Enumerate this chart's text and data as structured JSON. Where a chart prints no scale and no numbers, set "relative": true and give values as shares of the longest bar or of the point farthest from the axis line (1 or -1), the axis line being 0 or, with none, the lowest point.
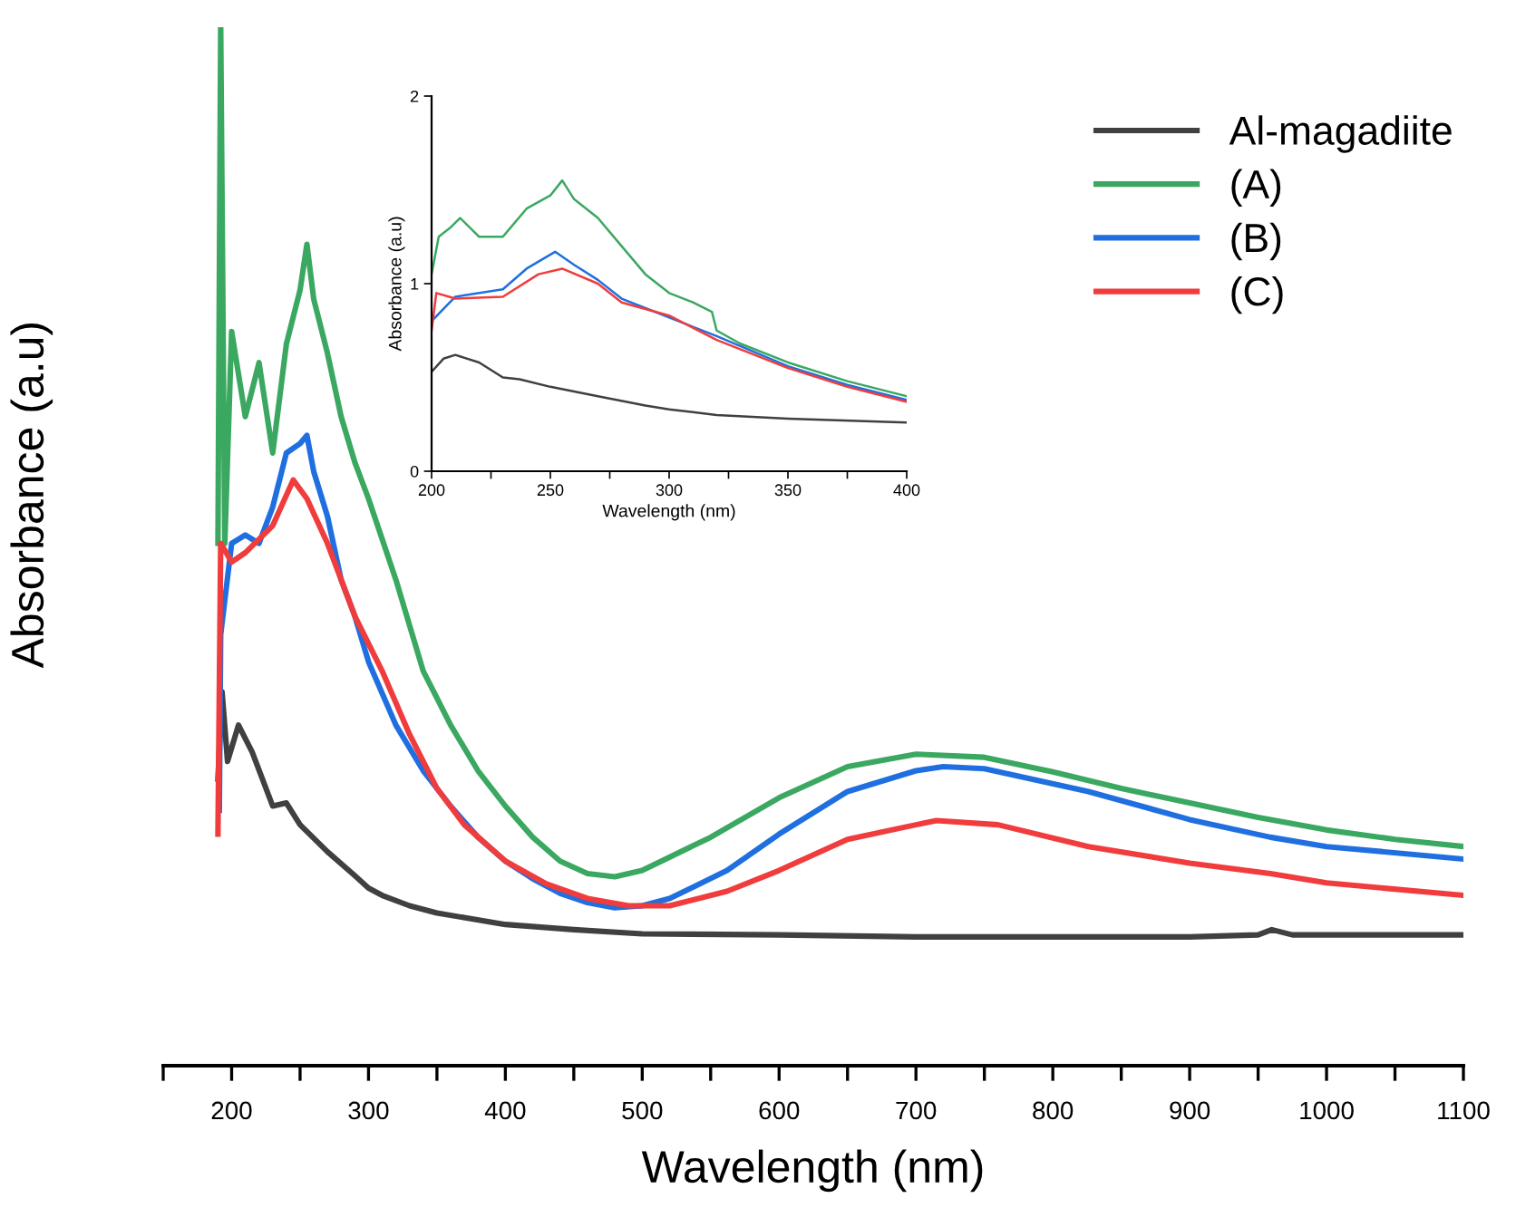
{
  "chart_data": [
    {
      "type": "line",
      "relative": true,
      "xlabel": "Wavelength (nm)",
      "ylabel": "Absorbance (a.u)",
      "legend": "top right",
      "xlim": [
        150,
        1100
      ],
      "xticks": [
        {
          "value": 150,
          "label": null
        },
        200,
        {
          "value": 250,
          "label": null
        },
        300,
        {
          "value": 350,
          "label": null
        },
        400,
        {
          "value": 450,
          "label": null
        },
        500,
        {
          "value": 550,
          "label": null
        },
        600,
        {
          "value": 650,
          "label": null
        },
        700,
        {
          "value": 750,
          "label": null
        },
        800,
        {
          "value": 850,
          "label": null
        },
        900,
        {
          "value": 950,
          "label": null
        },
        1000,
        {
          "value": 1050,
          "label": null
        },
        1100
      ],
      "series": [
        {
          "name": "Al-magadiite",
          "color": "#404040",
          "x": [
            190,
            193,
            197,
            205,
            215,
            230,
            240,
            250,
            270,
            290,
            300,
            310,
            330,
            350,
            400,
            450,
            500,
            600,
            700,
            900,
            950,
            960,
            975,
            1100
          ],
          "values": [
            0.276,
            0.36,
            0.293,
            0.328,
            0.302,
            0.25,
            0.253,
            0.232,
            0.206,
            0.183,
            0.171,
            0.164,
            0.154,
            0.147,
            0.136,
            0.131,
            0.127,
            0.126,
            0.124,
            0.124,
            0.126,
            0.131,
            0.126,
            0.126
          ]
        },
        {
          "name": "(A)",
          "color": "#3aa860",
          "x": [
            190,
            192,
            195,
            200,
            210,
            220,
            230,
            240,
            250,
            255,
            260,
            270,
            280,
            290,
            300,
            320,
            340,
            360,
            380,
            400,
            420,
            440,
            460,
            480,
            500,
            550,
            600,
            650,
            700,
            750,
            800,
            850,
            900,
            950,
            1000,
            1050,
            1100
          ],
          "values": [
            0.503,
            1.0,
            0.503,
            0.707,
            0.625,
            0.677,
            0.59,
            0.695,
            0.747,
            0.791,
            0.738,
            0.686,
            0.625,
            0.581,
            0.546,
            0.468,
            0.38,
            0.328,
            0.284,
            0.25,
            0.22,
            0.197,
            0.185,
            0.182,
            0.188,
            0.22,
            0.258,
            0.288,
            0.3,
            0.297,
            0.283,
            0.267,
            0.253,
            0.239,
            0.227,
            0.218,
            0.211
          ]
        },
        {
          "name": "(B)",
          "color": "#1f6fe0",
          "x": [
            191,
            192,
            200,
            210,
            220,
            230,
            240,
            250,
            255,
            260,
            270,
            280,
            290,
            300,
            320,
            340,
            360,
            380,
            400,
            420,
            440,
            460,
            480,
            500,
            520,
            562,
            600,
            650,
            700,
            720,
            750,
            826,
            900,
            959,
            1000,
            1100
          ],
          "values": [
            0.246,
            0.415,
            0.503,
            0.511,
            0.503,
            0.538,
            0.59,
            0.599,
            0.607,
            0.572,
            0.529,
            0.468,
            0.433,
            0.389,
            0.328,
            0.284,
            0.25,
            0.22,
            0.197,
            0.18,
            0.166,
            0.157,
            0.152,
            0.154,
            0.161,
            0.188,
            0.223,
            0.264,
            0.284,
            0.288,
            0.286,
            0.264,
            0.237,
            0.22,
            0.211,
            0.199
          ]
        },
        {
          "name": "(C)",
          "color": "#f03c3c",
          "x": [
            190,
            192,
            200,
            210,
            230,
            245,
            255,
            270,
            290,
            310,
            330,
            350,
            370,
            400,
            430,
            460,
            490,
            520,
            562,
            600,
            650,
            700,
            715,
            760,
            826,
            900,
            959,
            1000,
            1100
          ],
          "values": [
            0.223,
            0.503,
            0.485,
            0.494,
            0.52,
            0.564,
            0.546,
            0.503,
            0.433,
            0.38,
            0.319,
            0.267,
            0.232,
            0.197,
            0.175,
            0.161,
            0.154,
            0.154,
            0.168,
            0.188,
            0.218,
            0.232,
            0.236,
            0.232,
            0.211,
            0.195,
            0.185,
            0.176,
            0.164
          ]
        }
      ]
    },
    {
      "type": "line",
      "xlabel": "Wavelength (nm)",
      "ylabel": "Absorbance (a.u)",
      "xlim": [
        200,
        400
      ],
      "ylim": [
        0,
        2
      ],
      "xticks": [
        200,
        {
          "value": 225,
          "label": null
        },
        250,
        {
          "value": 275,
          "label": null
        },
        300,
        {
          "value": 325,
          "label": null
        },
        350,
        {
          "value": 375,
          "label": null
        },
        400
      ],
      "yticks": [
        0,
        1,
        2
      ],
      "series": [
        {
          "color": "#404040",
          "x": [
            200,
            205,
            210,
            220,
            230,
            237,
            250,
            270,
            290,
            300,
            320,
            350,
            400
          ],
          "values": [
            0.53,
            0.6,
            0.62,
            0.58,
            0.5,
            0.49,
            0.45,
            0.4,
            0.35,
            0.33,
            0.3,
            0.28,
            0.26
          ]
        },
        {
          "color": "#3aa860",
          "x": [
            200,
            203,
            208,
            212,
            220,
            230,
            240,
            250,
            255,
            260,
            270,
            280,
            290,
            300,
            310,
            318,
            320,
            330,
            350,
            375,
            400
          ],
          "values": [
            1.05,
            1.25,
            1.3,
            1.35,
            1.25,
            1.25,
            1.4,
            1.47,
            1.55,
            1.45,
            1.35,
            1.2,
            1.05,
            0.95,
            0.9,
            0.85,
            0.75,
            0.68,
            0.58,
            0.48,
            0.4
          ]
        },
        {
          "color": "#1f6fe0",
          "x": [
            200,
            210,
            230,
            240,
            252,
            260,
            270,
            280,
            300,
            320,
            350,
            375,
            400
          ],
          "values": [
            0.8,
            0.93,
            0.97,
            1.08,
            1.17,
            1.1,
            1.02,
            0.92,
            0.82,
            0.72,
            0.56,
            0.46,
            0.38
          ]
        },
        {
          "color": "#f03c3c",
          "x": [
            200,
            202,
            210,
            230,
            245,
            255,
            270,
            280,
            300,
            320,
            350,
            375,
            400
          ],
          "values": [
            0.75,
            0.95,
            0.92,
            0.93,
            1.05,
            1.08,
            1.0,
            0.9,
            0.83,
            0.7,
            0.55,
            0.45,
            0.37
          ]
        }
      ]
    }
  ]
}
